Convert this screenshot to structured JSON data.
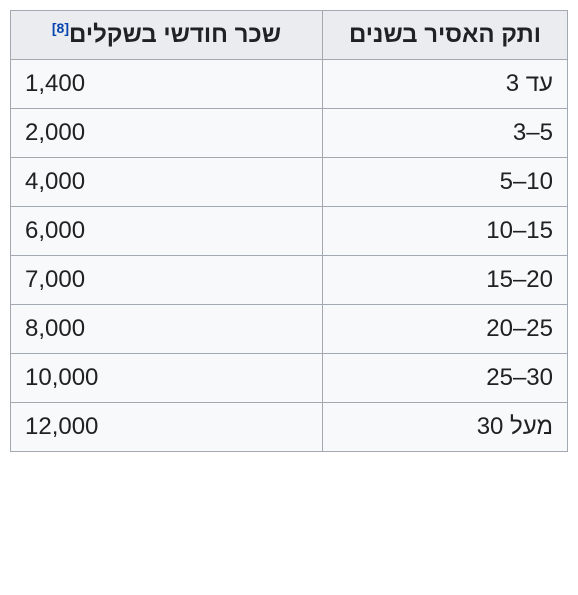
{
  "table": {
    "type": "table",
    "direction": "rtl",
    "border_color": "#a2a9b1",
    "header_bg": "#eaecf0",
    "cell_bg": "#f8f9fa",
    "text_color": "#202122",
    "link_color": "#0645ad",
    "font_size_pt": 18,
    "ref_font_size_pt": 10,
    "columns": [
      {
        "key": "years",
        "label": "ותק האסיר בשנים",
        "align": "right",
        "width_pct": 44
      },
      {
        "key": "salary",
        "label": "שכר חודשי בשקלים",
        "align": "left",
        "width_pct": 56,
        "ref": "[8]"
      }
    ],
    "rows": [
      {
        "years": "עד 3",
        "salary": "1,400"
      },
      {
        "years": "5–3",
        "salary": "2,000"
      },
      {
        "years": "10–5",
        "salary": "4,000"
      },
      {
        "years": "15–10",
        "salary": "6,000"
      },
      {
        "years": "20–15",
        "salary": "7,000"
      },
      {
        "years": "25–20",
        "salary": "8,000"
      },
      {
        "years": "30–25",
        "salary": "10,000"
      },
      {
        "years": "מעל 30",
        "salary": "12,000"
      }
    ]
  }
}
